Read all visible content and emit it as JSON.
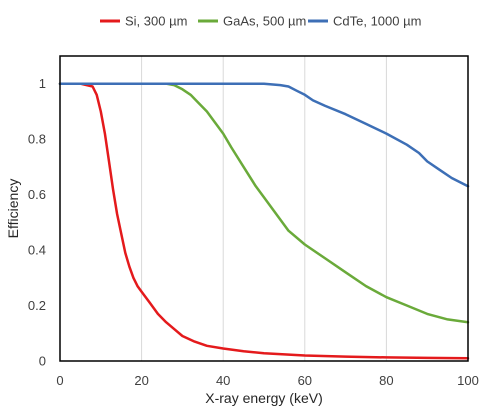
{
  "chart_data": {
    "type": "line",
    "title": "",
    "xlabel": "X-ray energy (keV)",
    "ylabel": "Efficiency",
    "xlim": [
      0,
      100
    ],
    "ylim": [
      0,
      1.1
    ],
    "x_ticks": [
      0,
      20,
      40,
      60,
      80,
      100
    ],
    "y_ticks": [
      0,
      0.2,
      0.4,
      0.6,
      0.8,
      1
    ],
    "x_tick_labels": [
      "0",
      "20",
      "40",
      "60",
      "80",
      "100"
    ],
    "y_tick_labels": [
      "0",
      "0.2",
      "0.4",
      "0.6",
      "0.8",
      "1"
    ],
    "grid": {
      "vertical": true,
      "horizontal": false
    },
    "legend_position": "top",
    "series": [
      {
        "name": "Si, 300 µm",
        "color": "#e41a1c",
        "x": [
          0,
          5,
          8,
          9,
          10,
          11,
          12,
          13,
          14,
          15,
          16,
          17,
          18,
          19,
          20,
          22,
          24,
          26,
          28,
          30,
          33,
          36,
          40,
          45,
          50,
          60,
          70,
          80,
          90,
          100
        ],
        "y": [
          1,
          1,
          0.99,
          0.96,
          0.9,
          0.82,
          0.72,
          0.62,
          0.53,
          0.46,
          0.39,
          0.34,
          0.3,
          0.27,
          0.25,
          0.21,
          0.17,
          0.14,
          0.115,
          0.09,
          0.07,
          0.055,
          0.045,
          0.035,
          0.028,
          0.02,
          0.016,
          0.013,
          0.011,
          0.01
        ]
      },
      {
        "name": "GaAs, 500 µm",
        "color": "#6aaa3a",
        "x": [
          0,
          10,
          20,
          26,
          28,
          30,
          32,
          34,
          36,
          38,
          40,
          42,
          45,
          48,
          50,
          53,
          56,
          60,
          65,
          70,
          75,
          80,
          85,
          90,
          95,
          100
        ],
        "y": [
          1,
          1,
          1,
          1,
          0.995,
          0.98,
          0.96,
          0.93,
          0.9,
          0.86,
          0.82,
          0.77,
          0.7,
          0.63,
          0.59,
          0.53,
          0.47,
          0.42,
          0.37,
          0.32,
          0.27,
          0.23,
          0.2,
          0.17,
          0.15,
          0.14
        ]
      },
      {
        "name": "CdTe, 1000 µm",
        "color": "#3d6fb6",
        "x": [
          0,
          10,
          20,
          30,
          40,
          50,
          54,
          56,
          58,
          60,
          62,
          65,
          70,
          75,
          80,
          85,
          88,
          90,
          93,
          96,
          100
        ],
        "y": [
          1,
          1,
          1,
          1,
          1,
          1,
          0.995,
          0.99,
          0.975,
          0.96,
          0.94,
          0.92,
          0.89,
          0.855,
          0.82,
          0.78,
          0.75,
          0.72,
          0.69,
          0.66,
          0.63
        ]
      }
    ]
  }
}
